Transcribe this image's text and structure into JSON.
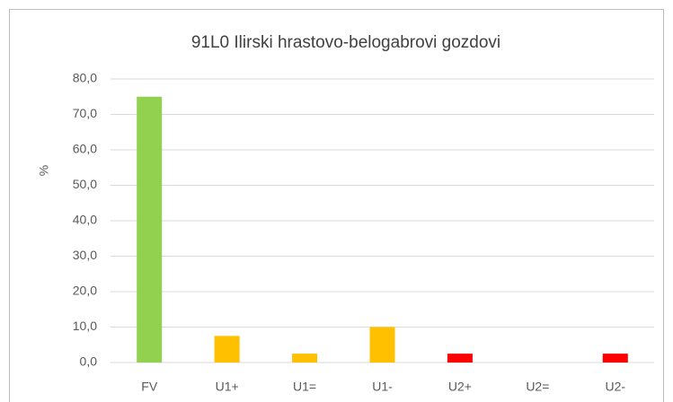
{
  "chart_data": {
    "type": "bar",
    "title": "91L0 Ilirski hrastovo-belogabrovi gozdovi",
    "y_label": "%",
    "categories": [
      "FV",
      "U1+",
      "U1=",
      "U1-",
      "U2+",
      "U2=",
      "U2-"
    ],
    "values": [
      75,
      7.5,
      2.5,
      10,
      2.5,
      0,
      2.5
    ],
    "colors": [
      "#92d050",
      "#ffc000",
      "#ffc000",
      "#ffc000",
      "#ff0000",
      "#ff0000",
      "#ff0000"
    ],
    "ylim": [
      0,
      80
    ],
    "yticks": [
      {
        "value": 0,
        "label": "0,0"
      },
      {
        "value": 10,
        "label": "10,0"
      },
      {
        "value": 20,
        "label": "20,0"
      },
      {
        "value": 30,
        "label": "30,0"
      },
      {
        "value": 40,
        "label": "40,0"
      },
      {
        "value": 50,
        "label": "50,0"
      },
      {
        "value": 60,
        "label": "60,0"
      },
      {
        "value": 70,
        "label": "70,0"
      },
      {
        "value": 80,
        "label": "80,0"
      }
    ],
    "grid": true
  }
}
